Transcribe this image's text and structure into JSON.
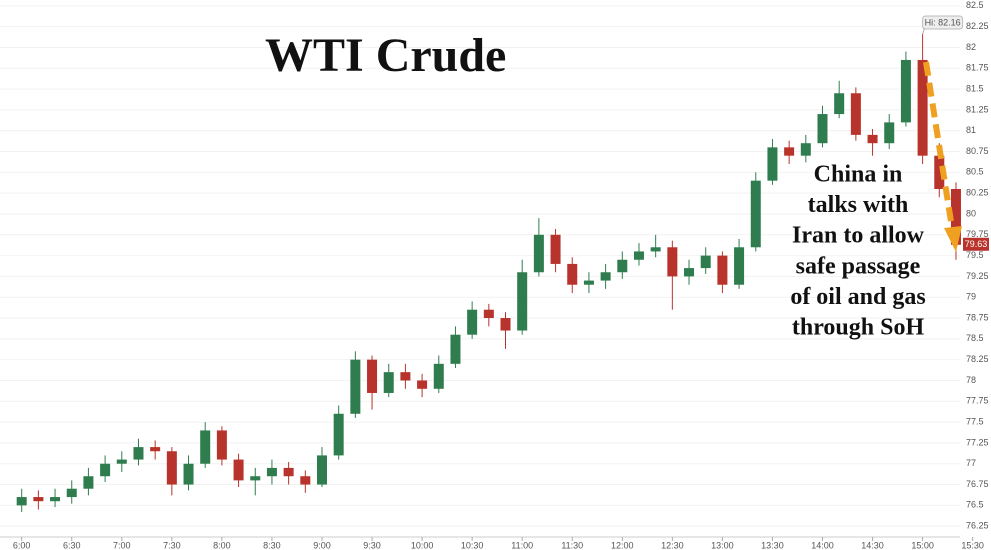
{
  "chart_data": {
    "type": "candlestick",
    "title": "WTI Crude",
    "note": [
      "China in",
      "talks with",
      "Iran to allow",
      "safe passage",
      "of oil and gas",
      "through SoH"
    ],
    "high_label": "Hi: 82.16",
    "last_label": "79.63",
    "up_color": "#2f7d4f",
    "down_color": "#b8332b",
    "grid": true,
    "x": [
      360,
      370,
      380,
      390,
      400,
      410,
      420,
      430,
      440,
      450,
      460,
      470,
      480,
      490,
      500,
      510,
      520,
      530,
      540,
      550,
      560,
      570,
      580,
      590,
      600,
      610,
      620,
      630,
      640,
      650,
      660,
      670,
      680,
      690,
      700,
      710,
      720,
      730,
      740,
      750,
      760,
      770,
      780,
      790,
      800,
      810,
      820,
      830,
      840,
      850,
      860,
      870,
      880,
      890,
      900,
      910,
      920
    ],
    "open": [
      76.5,
      76.6,
      76.55,
      76.6,
      76.7,
      76.85,
      77.0,
      77.05,
      77.2,
      77.15,
      76.75,
      77.0,
      77.4,
      77.05,
      76.8,
      76.85,
      76.95,
      76.85,
      76.75,
      77.1,
      77.6,
      78.25,
      77.85,
      78.1,
      78.0,
      77.9,
      78.2,
      78.55,
      78.85,
      78.75,
      78.6,
      79.3,
      79.75,
      79.4,
      79.15,
      79.2,
      79.3,
      79.45,
      79.55,
      79.6,
      79.25,
      79.35,
      79.5,
      79.15,
      79.6,
      80.4,
      80.8,
      80.7,
      80.85,
      81.2,
      81.45,
      80.95,
      80.85,
      81.1,
      81.85,
      80.7,
      80.3
    ],
    "high": [
      76.7,
      76.68,
      76.7,
      76.8,
      76.95,
      77.1,
      77.15,
      77.3,
      77.28,
      77.2,
      77.1,
      77.5,
      77.45,
      77.12,
      76.95,
      77.05,
      77.02,
      76.92,
      77.2,
      77.7,
      78.35,
      78.3,
      78.2,
      78.2,
      78.08,
      78.3,
      78.65,
      78.95,
      78.92,
      78.82,
      79.45,
      79.95,
      79.82,
      79.48,
      79.3,
      79.4,
      79.55,
      79.65,
      79.75,
      79.68,
      79.45,
      79.6,
      79.55,
      79.7,
      80.5,
      80.9,
      80.88,
      80.95,
      81.3,
      81.6,
      81.52,
      81.02,
      81.2,
      81.95,
      82.16,
      80.85,
      80.38
    ],
    "low": [
      76.42,
      76.45,
      76.48,
      76.52,
      76.62,
      76.78,
      76.9,
      76.98,
      77.05,
      76.62,
      76.68,
      76.95,
      76.98,
      76.72,
      76.62,
      76.75,
      76.75,
      76.65,
      76.72,
      77.05,
      77.55,
      77.65,
      77.8,
      77.9,
      77.8,
      77.85,
      78.15,
      78.5,
      78.65,
      78.38,
      78.55,
      79.25,
      79.3,
      79.05,
      79.05,
      79.1,
      79.22,
      79.38,
      79.48,
      78.85,
      79.15,
      79.28,
      79.05,
      79.1,
      79.55,
      80.35,
      80.6,
      80.62,
      80.8,
      81.15,
      80.88,
      80.7,
      80.78,
      81.05,
      80.6,
      80.2,
      79.45
    ],
    "close": [
      76.6,
      76.55,
      76.6,
      76.7,
      76.85,
      77.0,
      77.05,
      77.2,
      77.15,
      76.75,
      77.0,
      77.4,
      77.05,
      76.8,
      76.85,
      76.95,
      76.85,
      76.75,
      77.1,
      77.6,
      78.25,
      77.85,
      78.1,
      78.0,
      77.9,
      78.2,
      78.55,
      78.85,
      78.75,
      78.6,
      79.3,
      79.75,
      79.4,
      79.15,
      79.2,
      79.3,
      79.45,
      79.55,
      79.6,
      79.25,
      79.35,
      79.5,
      79.15,
      79.6,
      80.4,
      80.8,
      80.7,
      80.85,
      81.2,
      81.45,
      80.95,
      80.85,
      81.1,
      81.85,
      80.7,
      80.3,
      79.63
    ],
    "xlim": [
      347,
      941
    ],
    "ylim": [
      76.12,
      82.57
    ],
    "xticks": [
      {
        "value": 360,
        "label": "6:00"
      },
      {
        "value": 390,
        "label": "6:30"
      },
      {
        "value": 420,
        "label": "7:00"
      },
      {
        "value": 450,
        "label": "7:30"
      },
      {
        "value": 480,
        "label": "8:00"
      },
      {
        "value": 510,
        "label": "8:30"
      },
      {
        "value": 540,
        "label": "9:00"
      },
      {
        "value": 570,
        "label": "9:30"
      },
      {
        "value": 600,
        "label": "10:00"
      },
      {
        "value": 630,
        "label": "10:30"
      },
      {
        "value": 660,
        "label": "11:00"
      },
      {
        "value": 690,
        "label": "11:30"
      },
      {
        "value": 720,
        "label": "12:00"
      },
      {
        "value": 750,
        "label": "12:30"
      },
      {
        "value": 780,
        "label": "13:00"
      },
      {
        "value": 810,
        "label": "13:30"
      },
      {
        "value": 840,
        "label": "14:00"
      },
      {
        "value": 870,
        "label": "14:30"
      },
      {
        "value": 900,
        "label": "15:00"
      },
      {
        "value": 930,
        "label": "15:30"
      }
    ],
    "yticks": [
      76.25,
      76.5,
      76.75,
      77,
      77.25,
      77.5,
      77.75,
      78,
      78.25,
      78.5,
      78.75,
      79,
      79.25,
      79.5,
      79.75,
      80,
      80.25,
      80.5,
      80.75,
      81,
      81.25,
      81.5,
      81.75,
      82,
      82.25,
      82.5
    ]
  }
}
